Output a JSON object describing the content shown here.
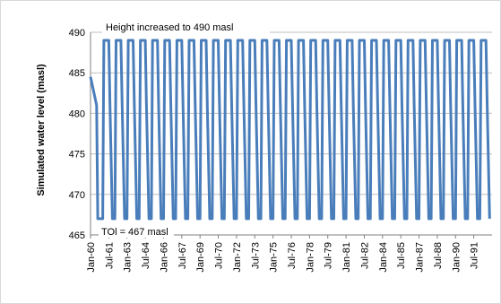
{
  "chart_data": {
    "type": "line",
    "ylabel": "Simulated water level (masl)",
    "ylim": [
      465,
      490
    ],
    "y_ticks": [
      465,
      470,
      475,
      480,
      485,
      490
    ],
    "x_tick_labels": [
      "Jan-60",
      "Jul-61",
      "Jan-63",
      "Jul-64",
      "Jan-66",
      "Jul-67",
      "Jan-69",
      "Jul-70",
      "Jan-72",
      "Jul-73",
      "Jan-75",
      "Jul-76",
      "Jan-78",
      "Jul-79",
      "Jan-81",
      "Jul-82",
      "Jan-84",
      "Jul-85",
      "Jan-87",
      "Jul-88",
      "Jan-90",
      "Jul-91"
    ],
    "x_start": "Jan-60",
    "x_end": "Dec-92",
    "gridlines": "horizontal",
    "legend": "none",
    "annotations": {
      "top": "Height increased to 490 masl",
      "bottom": "TOl = 467 masl"
    },
    "line_color": "#4a7ebb",
    "cycle": {
      "period_years": 1,
      "max_level": 489,
      "min_level": 467,
      "start_level": 484.5,
      "description_shape": "rapid rise to 489, decline to ~481, drop to 467, hold, repeat"
    },
    "series": [
      {
        "name": "",
        "x_years": [
          1960.0,
          1960.5,
          1960.6,
          1961.0,
          1961.1,
          1961.5,
          1961.6,
          1961.8,
          1962.0,
          1962.1,
          1962.5,
          1962.6,
          1962.8,
          1963.0,
          1963.1,
          1963.5,
          1963.6,
          1963.8,
          1964.0,
          1964.1,
          1964.5,
          1964.6,
          1964.8,
          1965.0,
          1965.1,
          1965.5,
          1965.6,
          1965.8,
          1966.0,
          1966.1,
          1966.5,
          1966.6,
          1966.8,
          1967.0,
          1967.1,
          1967.5,
          1967.6,
          1967.8,
          1968.0,
          1968.1,
          1968.5,
          1968.6,
          1968.8,
          1969.0,
          1969.1,
          1969.5,
          1969.6,
          1969.8,
          1970.0,
          1970.1,
          1970.5,
          1970.6,
          1970.8,
          1971.0,
          1971.1,
          1971.5,
          1971.6,
          1971.8,
          1972.0,
          1972.1,
          1972.5,
          1972.6,
          1972.8,
          1973.0,
          1973.1,
          1973.5,
          1973.6,
          1973.8,
          1974.0,
          1974.1,
          1974.5,
          1974.6,
          1974.8,
          1975.0,
          1975.1,
          1975.5,
          1975.6,
          1975.8,
          1976.0,
          1976.1,
          1976.5,
          1976.6,
          1976.8,
          1977.0,
          1977.1,
          1977.5,
          1977.6,
          1977.8,
          1978.0,
          1978.1,
          1978.5,
          1978.6,
          1978.8,
          1979.0,
          1979.1,
          1979.5,
          1979.6,
          1979.8,
          1980.0,
          1980.1,
          1980.5,
          1980.6,
          1980.8,
          1981.0,
          1981.1,
          1981.5,
          1981.6,
          1981.8,
          1982.0,
          1982.1,
          1982.5,
          1982.6,
          1982.8,
          1983.0,
          1983.1,
          1983.5,
          1983.6,
          1983.8,
          1984.0,
          1984.1,
          1984.5,
          1984.6,
          1984.8,
          1985.0,
          1985.1,
          1985.5,
          1985.6,
          1985.8,
          1986.0,
          1986.1,
          1986.5,
          1986.6,
          1986.8,
          1987.0,
          1987.1,
          1987.5,
          1987.6,
          1987.8,
          1988.0,
          1988.1,
          1988.5,
          1988.6,
          1988.8,
          1989.0,
          1989.1,
          1989.5,
          1989.6,
          1989.8,
          1990.0,
          1990.1,
          1990.5,
          1990.6,
          1990.8,
          1991.0,
          1991.1,
          1991.5,
          1991.6,
          1991.8,
          1992.0,
          1992.1,
          1992.5,
          1992.6,
          1992.8
        ],
        "y_masl": [
          484.5,
          481,
          467,
          467,
          489,
          489,
          481,
          467,
          467,
          489,
          489,
          481,
          467,
          467,
          489,
          489,
          481,
          467,
          467,
          489,
          489,
          481,
          467,
          467,
          489,
          489,
          481,
          467,
          467,
          489,
          489,
          481,
          467,
          467,
          489,
          489,
          481,
          467,
          467,
          489,
          489,
          481,
          467,
          467,
          489,
          489,
          481,
          467,
          467,
          489,
          489,
          481,
          467,
          467,
          489,
          489,
          481,
          467,
          467,
          489,
          489,
          481,
          467,
          467,
          489,
          489,
          481,
          467,
          467,
          489,
          489,
          481,
          467,
          467,
          489,
          489,
          481,
          467,
          467,
          489,
          489,
          481,
          467,
          467,
          489,
          489,
          481,
          467,
          467,
          489,
          489,
          481,
          467,
          467,
          489,
          489,
          481,
          467,
          467,
          489,
          489,
          481,
          467,
          467,
          489,
          489,
          481,
          467,
          467,
          489,
          489,
          481,
          467,
          467,
          489,
          489,
          481,
          467,
          467,
          489,
          489,
          481,
          467,
          467,
          489,
          489,
          481,
          467,
          467,
          489,
          489,
          481,
          467,
          467,
          489,
          489,
          481,
          467,
          467,
          489,
          489,
          481,
          467,
          467,
          489,
          489,
          481,
          467,
          467,
          489,
          489,
          481,
          467,
          467,
          489,
          489,
          481,
          467,
          467,
          489,
          489,
          481,
          467
        ]
      }
    ]
  }
}
